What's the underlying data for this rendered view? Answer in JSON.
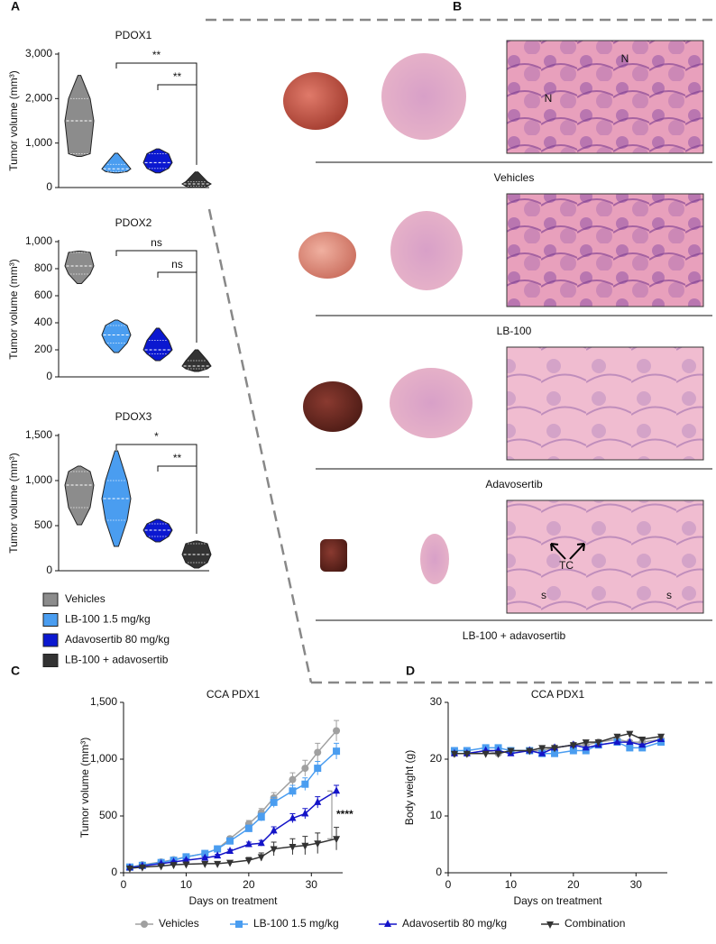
{
  "panels": [
    "A",
    "B",
    "C",
    "D"
  ],
  "legend_a": [
    {
      "name": "Vehicles",
      "color": "#8c8c8c"
    },
    {
      "name": "LB-100 1.5 mg/kg",
      "color": "#4a9df0"
    },
    {
      "name": "Adavosertib 80 mg/kg",
      "color": "#0b18d0"
    },
    {
      "name": "LB-100 + adavosertib",
      "color": "#333333"
    }
  ],
  "histology": [
    {
      "label": "Vehicles",
      "annotations": [
        "N",
        "N"
      ]
    },
    {
      "label": "LB-100",
      "annotations": []
    },
    {
      "label": "Adavosertib",
      "annotations": []
    },
    {
      "label": "LB-100 + adavosertib",
      "annotations": [
        "TC",
        "s",
        "s"
      ]
    }
  ],
  "chart_data": [
    {
      "type": "violin",
      "title": "PDOX1",
      "ylabel": "Tumor volume (mm³)",
      "ylim": [
        0,
        3000
      ],
      "yticks": [
        0,
        {
          "value": 1000,
          "label": "1,000"
        },
        {
          "value": 2000,
          "label": "2,000"
        },
        {
          "value": 3000,
          "label": "3,000"
        }
      ],
      "groups": [
        {
          "min": 700,
          "q1": 760,
          "median": 1500,
          "q3": 2000,
          "max": 2520
        },
        {
          "min": 330,
          "q1": 360,
          "median": 420,
          "q3": 520,
          "max": 770
        },
        {
          "min": 330,
          "q1": 430,
          "median": 560,
          "q3": 760,
          "max": 870
        },
        {
          "min": 0,
          "q1": 30,
          "median": 80,
          "q3": 130,
          "max": 350
        }
      ],
      "comparisons": [
        "**",
        "**"
      ]
    },
    {
      "type": "violin",
      "title": "PDOX2",
      "ylabel": "Tumor volume (mm³)",
      "ylim": [
        0,
        1000
      ],
      "yticks": [
        0,
        200,
        400,
        600,
        800,
        {
          "value": 1000,
          "label": "1,000"
        }
      ],
      "groups": [
        {
          "min": 690,
          "q1": 760,
          "median": 820,
          "q3": 920,
          "max": 930
        },
        {
          "min": 180,
          "q1": 250,
          "median": 310,
          "q3": 380,
          "max": 420
        },
        {
          "min": 120,
          "q1": 170,
          "median": 200,
          "q3": 270,
          "max": 360
        },
        {
          "min": 40,
          "q1": 60,
          "median": 80,
          "q3": 120,
          "max": 200
        }
      ],
      "comparisons": [
        "ns",
        "ns"
      ]
    },
    {
      "type": "violin",
      "title": "PDOX3",
      "ylabel": "Tumor volume (mm³)",
      "ylim": [
        0,
        1500
      ],
      "yticks": [
        0,
        500,
        {
          "value": 1000,
          "label": "1,000"
        },
        {
          "value": 1500,
          "label": "1,500"
        }
      ],
      "groups": [
        {
          "min": 510,
          "q1": 700,
          "median": 950,
          "q3": 1100,
          "max": 1160
        },
        {
          "min": 270,
          "q1": 560,
          "median": 800,
          "q3": 1000,
          "max": 1330
        },
        {
          "min": 320,
          "q1": 380,
          "median": 450,
          "q3": 520,
          "max": 570
        },
        {
          "min": 30,
          "q1": 90,
          "median": 180,
          "q3": 300,
          "max": 330
        }
      ],
      "comparisons": [
        "*",
        "**"
      ]
    },
    {
      "type": "line",
      "title": "CCA PDX1",
      "xlabel": "Days on treatment",
      "ylabel": "Tumor volume (mm³)",
      "xlim": [
        0,
        35
      ],
      "xticks": [
        0,
        10,
        20,
        30
      ],
      "ylim": [
        0,
        1500
      ],
      "yticks": [
        0,
        500,
        {
          "value": 1000,
          "label": "1,000"
        },
        {
          "value": 1500,
          "label": "1,500"
        }
      ],
      "x": [
        1,
        3,
        6,
        8,
        10,
        13,
        15,
        17,
        20,
        22,
        24,
        27,
        29,
        31,
        34
      ],
      "annotation": "****",
      "series": [
        {
          "name": "Vehicles",
          "color": "#a0a0a0",
          "marker": "circle",
          "values": [
            50,
            70,
            95,
            115,
            140,
            170,
            210,
            300,
            430,
            530,
            660,
            820,
            920,
            1060,
            1250
          ],
          "errors": [
            5,
            6,
            8,
            10,
            10,
            12,
            15,
            20,
            30,
            35,
            45,
            60,
            70,
            80,
            90
          ]
        },
        {
          "name": "LB-100 1.5 mg/kg",
          "color": "#4a9df0",
          "marker": "square",
          "values": [
            50,
            65,
            90,
            110,
            140,
            170,
            210,
            280,
            390,
            490,
            620,
            720,
            780,
            920,
            1070
          ],
          "errors": [
            5,
            6,
            8,
            10,
            10,
            12,
            15,
            20,
            30,
            35,
            45,
            50,
            55,
            60,
            70
          ]
        },
        {
          "name": "Adavosertib 80 mg/kg",
          "color": "#1414c8",
          "marker": "triangle",
          "values": [
            45,
            60,
            80,
            95,
            110,
            130,
            150,
            190,
            250,
            260,
            370,
            480,
            520,
            620,
            720
          ],
          "errors": [
            5,
            5,
            6,
            8,
            10,
            10,
            12,
            15,
            20,
            25,
            35,
            40,
            45,
            50,
            50
          ]
        },
        {
          "name": "Combination",
          "color": "#333333",
          "marker": "triangle-down",
          "values": [
            40,
            50,
            60,
            70,
            75,
            80,
            80,
            90,
            110,
            140,
            210,
            230,
            240,
            260,
            300
          ],
          "errors": [
            5,
            5,
            6,
            8,
            10,
            10,
            12,
            15,
            25,
            35,
            60,
            70,
            80,
            90,
            100
          ]
        }
      ]
    },
    {
      "type": "line",
      "title": "CCA PDX1",
      "xlabel": "Days on treatment",
      "ylabel": "Body weight (g)",
      "xlim": [
        0,
        35
      ],
      "xticks": [
        0,
        10,
        20,
        30
      ],
      "ylim": [
        0,
        30
      ],
      "yticks": [
        0,
        10,
        20,
        30
      ],
      "x": [
        1,
        3,
        6,
        8,
        10,
        13,
        15,
        17,
        20,
        22,
        24,
        27,
        29,
        31,
        34
      ],
      "series": [
        {
          "name": "Vehicles",
          "color": "#a0a0a0",
          "marker": "circle",
          "values": [
            21,
            21,
            21.5,
            21,
            21.5,
            21.5,
            21.5,
            22,
            22.5,
            22.5,
            23,
            23.5,
            23,
            23,
            23.5
          ]
        },
        {
          "name": "LB-100 1.5 mg/kg",
          "color": "#4a9df0",
          "marker": "square",
          "values": [
            21.5,
            21.5,
            22,
            22,
            21.5,
            21.5,
            21,
            21,
            21.5,
            21.5,
            22.5,
            23,
            22,
            22,
            23
          ]
        },
        {
          "name": "Adavosertib 80 mg/kg",
          "color": "#1414c8",
          "marker": "triangle",
          "values": [
            21,
            21,
            21.5,
            21.5,
            21,
            21.5,
            21,
            22,
            22.5,
            22,
            22.5,
            23,
            23,
            22.5,
            23.5
          ]
        },
        {
          "name": "Combination",
          "color": "#333333",
          "marker": "triangle-down",
          "values": [
            21,
            21,
            21,
            21,
            21.5,
            21.5,
            22,
            22,
            22.5,
            23,
            23,
            24,
            24.5,
            23.5,
            24
          ]
        }
      ]
    }
  ]
}
